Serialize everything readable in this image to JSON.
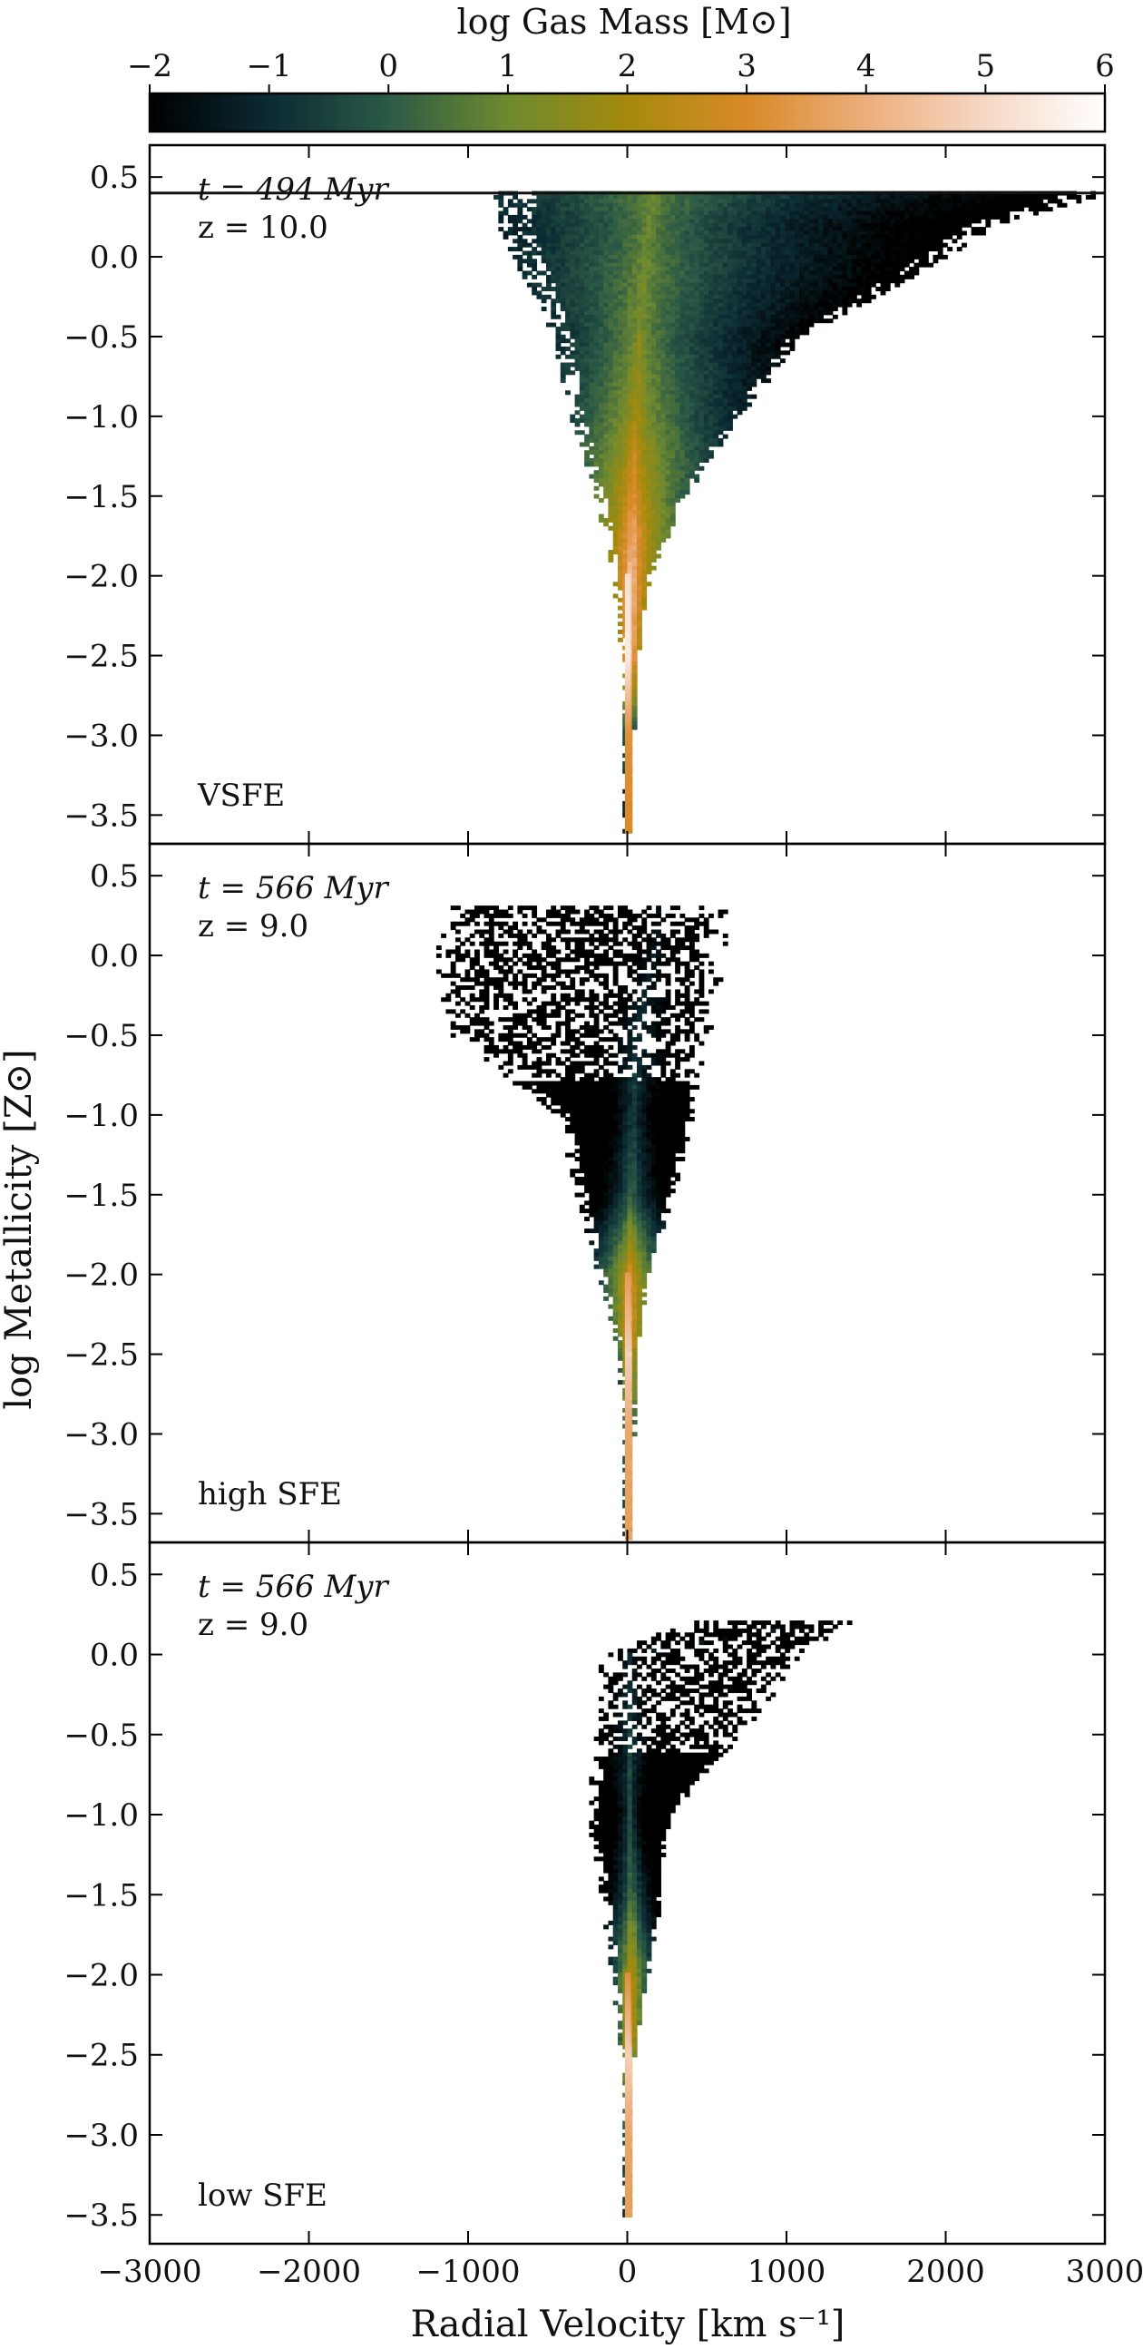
{
  "colorbar": {
    "label": "log Gas Mass [M⊙]",
    "ticks": [
      "−2",
      "−1",
      "0",
      "1",
      "2",
      "3",
      "4",
      "5",
      "6"
    ],
    "range": [
      -2,
      6
    ],
    "colormap_stops": [
      "#000000",
      "#0b2a33",
      "#2b5a46",
      "#6e8a30",
      "#a58a0c",
      "#d98a28",
      "#ecae7c",
      "#f6d8c5",
      "#ffffff"
    ]
  },
  "x_axis": {
    "label": "Radial Velocity [km s⁻¹]",
    "ticks": [
      "−3000",
      "−2000",
      "−1000",
      "0",
      "1000",
      "2000",
      "3000"
    ]
  },
  "y_axis": {
    "label": "log Metallicity [Z⊙]",
    "ticks": [
      "0.5",
      "0.0",
      "−0.5",
      "−1.0",
      "−1.5",
      "−2.0",
      "−2.5",
      "−3.0",
      "−3.5"
    ]
  },
  "chart_data": [
    {
      "type": "heatmap",
      "panel_label": "VSFE",
      "time_label": "t = 494 Myr",
      "redshift_label": "z = 10.0",
      "xlim": [
        -3000,
        3000
      ],
      "ylim": [
        -3.68,
        0.7
      ],
      "clim": [
        -2,
        6
      ],
      "points": [
        {
          "z": 0.4,
          "v_min": -820,
          "v_max": 3000,
          "v_peak": 150,
          "log_mass_peak": 1.1
        },
        {
          "z": 0.2,
          "v_min": -800,
          "v_max": 2300,
          "v_peak": 120,
          "log_mass_peak": 1.0
        },
        {
          "z": 0.0,
          "v_min": -700,
          "v_max": 2000,
          "v_peak": 100,
          "log_mass_peak": 1.2
        },
        {
          "z": -0.5,
          "v_min": -450,
          "v_max": 1100,
          "v_peak": 60,
          "log_mass_peak": 1.5
        },
        {
          "z": -1.0,
          "v_min": -350,
          "v_max": 700,
          "v_peak": 40,
          "log_mass_peak": 2.3
        },
        {
          "z": -1.5,
          "v_min": -180,
          "v_max": 350,
          "v_peak": 20,
          "log_mass_peak": 3.6
        },
        {
          "z": -2.0,
          "v_min": -80,
          "v_max": 130,
          "v_peak": 10,
          "log_mass_peak": 5.2
        },
        {
          "z": -2.5,
          "v_min": -20,
          "v_max": 60,
          "v_peak": 5,
          "log_mass_peak": 5.5
        },
        {
          "z": -3.0,
          "v_min": -15,
          "v_max": 30,
          "v_peak": 0,
          "log_mass_peak": 3.2
        },
        {
          "z": -3.6,
          "v_min": -10,
          "v_max": 20,
          "v_peak": 0,
          "log_mass_peak": 3.0
        }
      ],
      "ceiling_line_z": 0.4
    },
    {
      "type": "heatmap",
      "panel_label": "high SFE",
      "time_label": "t = 566 Myr",
      "redshift_label": "z = 9.0",
      "xlim": [
        -3000,
        3000
      ],
      "ylim": [
        -3.68,
        0.7
      ],
      "clim": [
        -2,
        6
      ],
      "points": [
        {
          "z": 0.3,
          "v_min": -1100,
          "v_max": 600,
          "v_peak": 200,
          "log_mass_peak": -1.5
        },
        {
          "z": 0.0,
          "v_min": -1200,
          "v_max": 600,
          "v_peak": 150,
          "log_mass_peak": -1.3
        },
        {
          "z": -0.5,
          "v_min": -1100,
          "v_max": 500,
          "v_peak": 50,
          "log_mass_peak": -0.8
        },
        {
          "z": -1.0,
          "v_min": -420,
          "v_max": 400,
          "v_peak": 20,
          "log_mass_peak": -0.3
        },
        {
          "z": -1.5,
          "v_min": -300,
          "v_max": 280,
          "v_peak": 10,
          "log_mass_peak": 0.6
        },
        {
          "z": -2.0,
          "v_min": -170,
          "v_max": 120,
          "v_peak": 5,
          "log_mass_peak": 3.5
        },
        {
          "z": -2.5,
          "v_min": -40,
          "v_max": 40,
          "v_peak": 0,
          "log_mass_peak": 4.8
        },
        {
          "z": -3.0,
          "v_min": -20,
          "v_max": 30,
          "v_peak": 0,
          "log_mass_peak": 3.8
        },
        {
          "z": -3.65,
          "v_min": -20,
          "v_max": 20,
          "v_peak": 0,
          "log_mass_peak": 3.6
        }
      ]
    },
    {
      "type": "heatmap",
      "panel_label": "low SFE",
      "time_label": "t = 566 Myr",
      "redshift_label": "z = 9.0",
      "xlim": [
        -3000,
        3000
      ],
      "ylim": [
        -3.68,
        0.7
      ],
      "clim": [
        -2,
        6
      ],
      "points": [
        {
          "z": 0.2,
          "v_min": 400,
          "v_max": 1400,
          "v_peak": 1200,
          "log_mass_peak": -1.8
        },
        {
          "z": 0.0,
          "v_min": -150,
          "v_max": 1100,
          "v_peak": 0,
          "log_mass_peak": -1.2
        },
        {
          "z": -0.5,
          "v_min": -180,
          "v_max": 700,
          "v_peak": 0,
          "log_mass_peak": -0.6
        },
        {
          "z": -1.0,
          "v_min": -240,
          "v_max": 250,
          "v_peak": 0,
          "log_mass_peak": -0.2
        },
        {
          "z": -1.5,
          "v_min": -150,
          "v_max": 200,
          "v_peak": 10,
          "log_mass_peak": 1.0
        },
        {
          "z": -2.0,
          "v_min": -80,
          "v_max": 120,
          "v_peak": 10,
          "log_mass_peak": 3.2
        },
        {
          "z": -2.5,
          "v_min": -30,
          "v_max": 30,
          "v_peak": 0,
          "log_mass_peak": 4.8
        },
        {
          "z": -3.0,
          "v_min": -20,
          "v_max": 25,
          "v_peak": 0,
          "log_mass_peak": 3.8
        },
        {
          "z": -3.5,
          "v_min": -20,
          "v_max": 20,
          "v_peak": 0,
          "log_mass_peak": 3.6
        }
      ]
    }
  ]
}
